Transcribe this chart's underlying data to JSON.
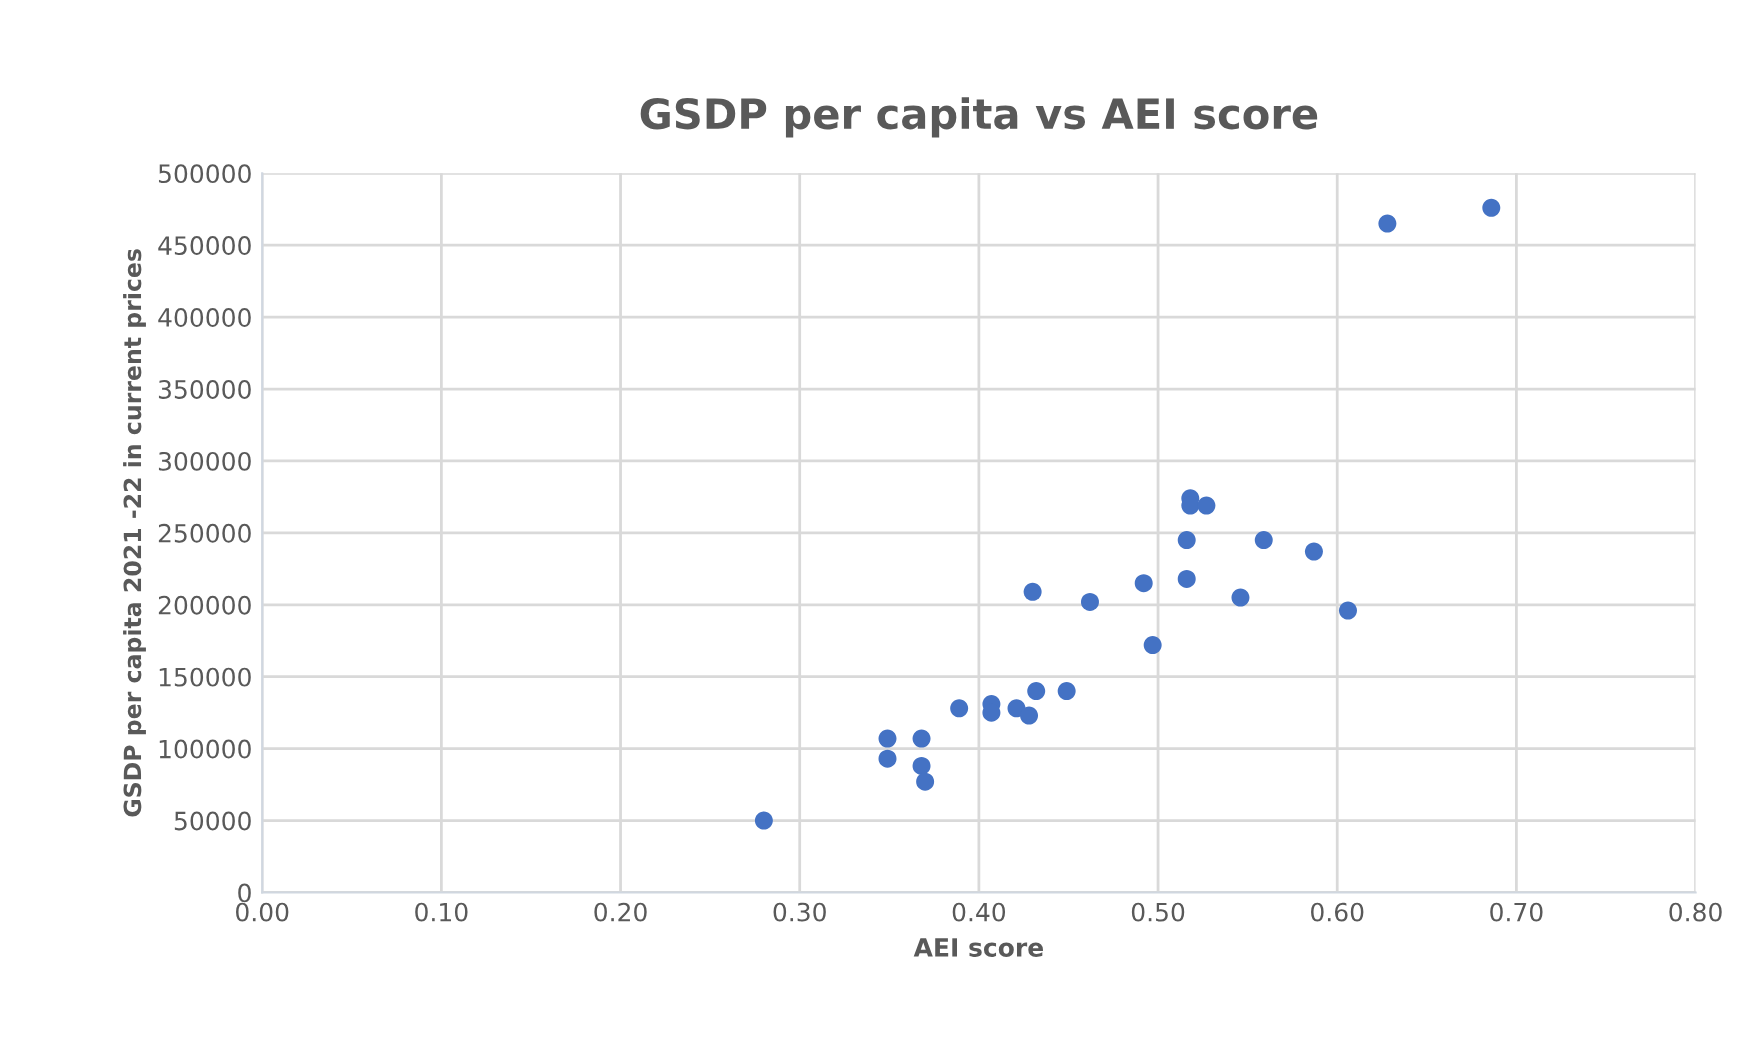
{
  "chart_data": {
    "type": "scatter",
    "title": "GSDP per capita vs AEI score",
    "xlabel": "AEI score",
    "ylabel": "GSDP per capita 2021 -22 in current prices",
    "series": [
      {
        "color": "#4472c4",
        "x": [
          0.28,
          0.349,
          0.349,
          0.368,
          0.368,
          0.37,
          0.389,
          0.407,
          0.407,
          0.421,
          0.428,
          0.432,
          0.449,
          0.43,
          0.462,
          0.492,
          0.497,
          0.516,
          0.516,
          0.518,
          0.518,
          0.527,
          0.546,
          0.559,
          0.587,
          0.606,
          0.628,
          0.686
        ],
        "values": [
          50000,
          107000,
          93000,
          107000,
          88000,
          77000,
          128000,
          131000,
          125000,
          128000,
          123000,
          140000,
          140000,
          209000,
          202000,
          215000,
          172000,
          218000,
          245000,
          274000,
          269000,
          269000,
          205000,
          245000,
          237000,
          196000,
          465000,
          476000
        ]
      }
    ],
    "xlim": [
      0,
      0.8
    ],
    "xticks": [
      {
        "value": 0,
        "label": "0.00"
      },
      {
        "value": 0.1,
        "label": "0.10"
      },
      {
        "value": 0.2,
        "label": "0.20"
      },
      {
        "value": 0.3,
        "label": "0.30"
      },
      {
        "value": 0.4,
        "label": "0.40"
      },
      {
        "value": 0.5,
        "label": "0.50"
      },
      {
        "value": 0.6,
        "label": "0.60"
      },
      {
        "value": 0.7,
        "label": "0.70"
      },
      {
        "value": 0.8,
        "label": "0.80"
      }
    ],
    "ylim": [
      0,
      500000
    ],
    "yticks": [
      0,
      50000,
      100000,
      150000,
      200000,
      250000,
      300000,
      350000,
      400000,
      450000,
      500000
    ],
    "grid": true,
    "marker": "circle"
  }
}
